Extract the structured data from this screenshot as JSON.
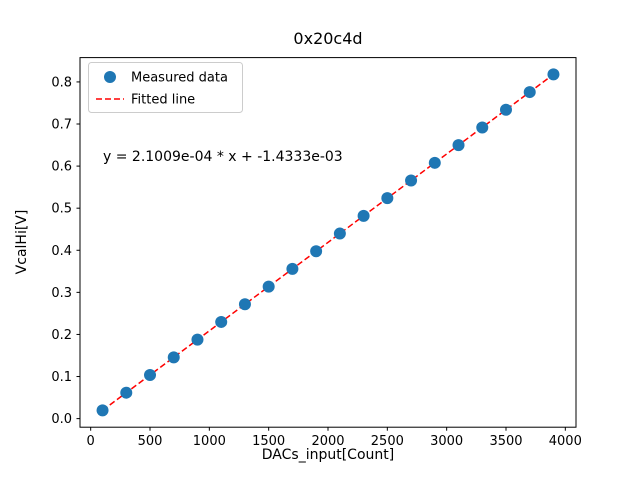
{
  "chart_data": {
    "type": "scatter",
    "title": "0x20c4d",
    "xlabel": "DACs_input[Count]",
    "ylabel": "VcalHi[V]",
    "xlim": [
      -90,
      4090
    ],
    "ylim": [
      -0.0204,
      0.8578
    ],
    "x_ticks": [
      0,
      500,
      1000,
      1500,
      2000,
      2500,
      3000,
      3500,
      4000
    ],
    "y_ticks": [
      0.0,
      0.1,
      0.2,
      0.3,
      0.4,
      0.5,
      0.6,
      0.7,
      0.8
    ],
    "grid": false,
    "annotation": "y = 2.1009e-04 * x + -1.4333e-03",
    "legend": {
      "position": "upper-left",
      "entries": [
        "Measured data",
        "Fitted line"
      ]
    },
    "series": [
      {
        "name": "Measured data",
        "type": "scatter",
        "color": "#1f77b4",
        "x": [
          100,
          300,
          500,
          700,
          900,
          1100,
          1300,
          1500,
          1700,
          1900,
          2100,
          2300,
          2500,
          2700,
          2900,
          3100,
          3300,
          3500,
          3700,
          3900
        ],
        "y": [
          0.0196,
          0.0616,
          0.1036,
          0.1456,
          0.1876,
          0.2297,
          0.2717,
          0.3137,
          0.3557,
          0.3977,
          0.4397,
          0.4818,
          0.5238,
          0.5658,
          0.6078,
          0.6498,
          0.6918,
          0.7339,
          0.7759,
          0.8179
        ]
      },
      {
        "name": "Fitted line",
        "type": "line",
        "style": "dashed",
        "color": "#ff0000",
        "slope": 0.00021009,
        "intercept": -0.0014333,
        "x_range": [
          100,
          3900
        ]
      }
    ]
  }
}
